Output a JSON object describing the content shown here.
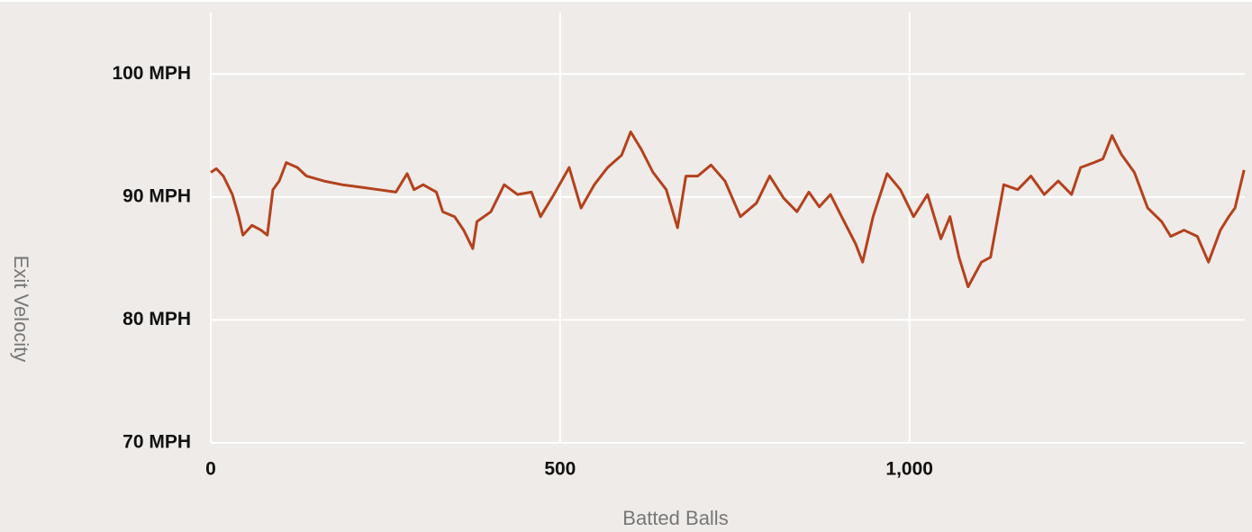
{
  "chart_data": {
    "type": "line",
    "x_label": "Batted Balls",
    "y_label": "Exit Velocity",
    "x": [
      0,
      8,
      18,
      31,
      40,
      46,
      59,
      72,
      81,
      89,
      98,
      108,
      124,
      137,
      162,
      188,
      214,
      240,
      265,
      281,
      291,
      304,
      323,
      332,
      349,
      362,
      375,
      381,
      401,
      420,
      439,
      459,
      472,
      491,
      513,
      530,
      549,
      568,
      588,
      601,
      616,
      633,
      652,
      668,
      680,
      697,
      716,
      736,
      758,
      781,
      800,
      820,
      839,
      856,
      871,
      887,
      903,
      923,
      933,
      948,
      968,
      987,
      1006,
      1026,
      1045,
      1058,
      1071,
      1084,
      1103,
      1116,
      1135,
      1155,
      1174,
      1193,
      1213,
      1232,
      1245,
      1264,
      1277,
      1290,
      1303,
      1322,
      1341,
      1361,
      1374,
      1393,
      1412,
      1428,
      1445,
      1457,
      1466,
      1479
    ],
    "values": [
      92.0,
      92.3,
      91.7,
      90.2,
      88.4,
      86.9,
      87.7,
      87.3,
      86.9,
      90.6,
      91.3,
      92.8,
      92.4,
      91.7,
      91.3,
      91.0,
      90.8,
      90.6,
      90.4,
      91.9,
      90.6,
      91.0,
      90.4,
      88.8,
      88.4,
      87.3,
      85.8,
      88.0,
      88.8,
      91.0,
      90.2,
      90.4,
      88.4,
      90.2,
      92.4,
      89.1,
      91.0,
      92.4,
      93.4,
      95.3,
      93.9,
      92.0,
      90.6,
      87.5,
      91.7,
      91.7,
      92.6,
      91.3,
      88.4,
      89.5,
      91.7,
      89.9,
      88.8,
      90.4,
      89.2,
      90.2,
      88.4,
      86.2,
      84.7,
      88.4,
      91.9,
      90.6,
      88.4,
      90.2,
      86.6,
      88.4,
      85.1,
      82.7,
      84.7,
      85.1,
      91.0,
      90.6,
      91.7,
      90.2,
      91.3,
      90.2,
      92.4,
      92.8,
      93.1,
      95.0,
      93.5,
      92.0,
      89.1,
      88.0,
      86.8,
      87.3,
      86.8,
      84.7,
      87.3,
      88.4,
      89.1,
      92.2
    ],
    "color": "#b3421d",
    "xlim": [
      0,
      1480
    ],
    "xticks": [
      0,
      500,
      {
        "value": 1000,
        "label": "1,000"
      }
    ],
    "ylim": [
      70,
      105
    ],
    "yticks": [
      {
        "value": 70,
        "label": "70 MPH"
      },
      {
        "value": 80,
        "label": "80 MPH"
      },
      {
        "value": 90,
        "label": "90 MPH"
      },
      {
        "value": 100,
        "label": "100 MPH"
      }
    ],
    "grid": true
  }
}
